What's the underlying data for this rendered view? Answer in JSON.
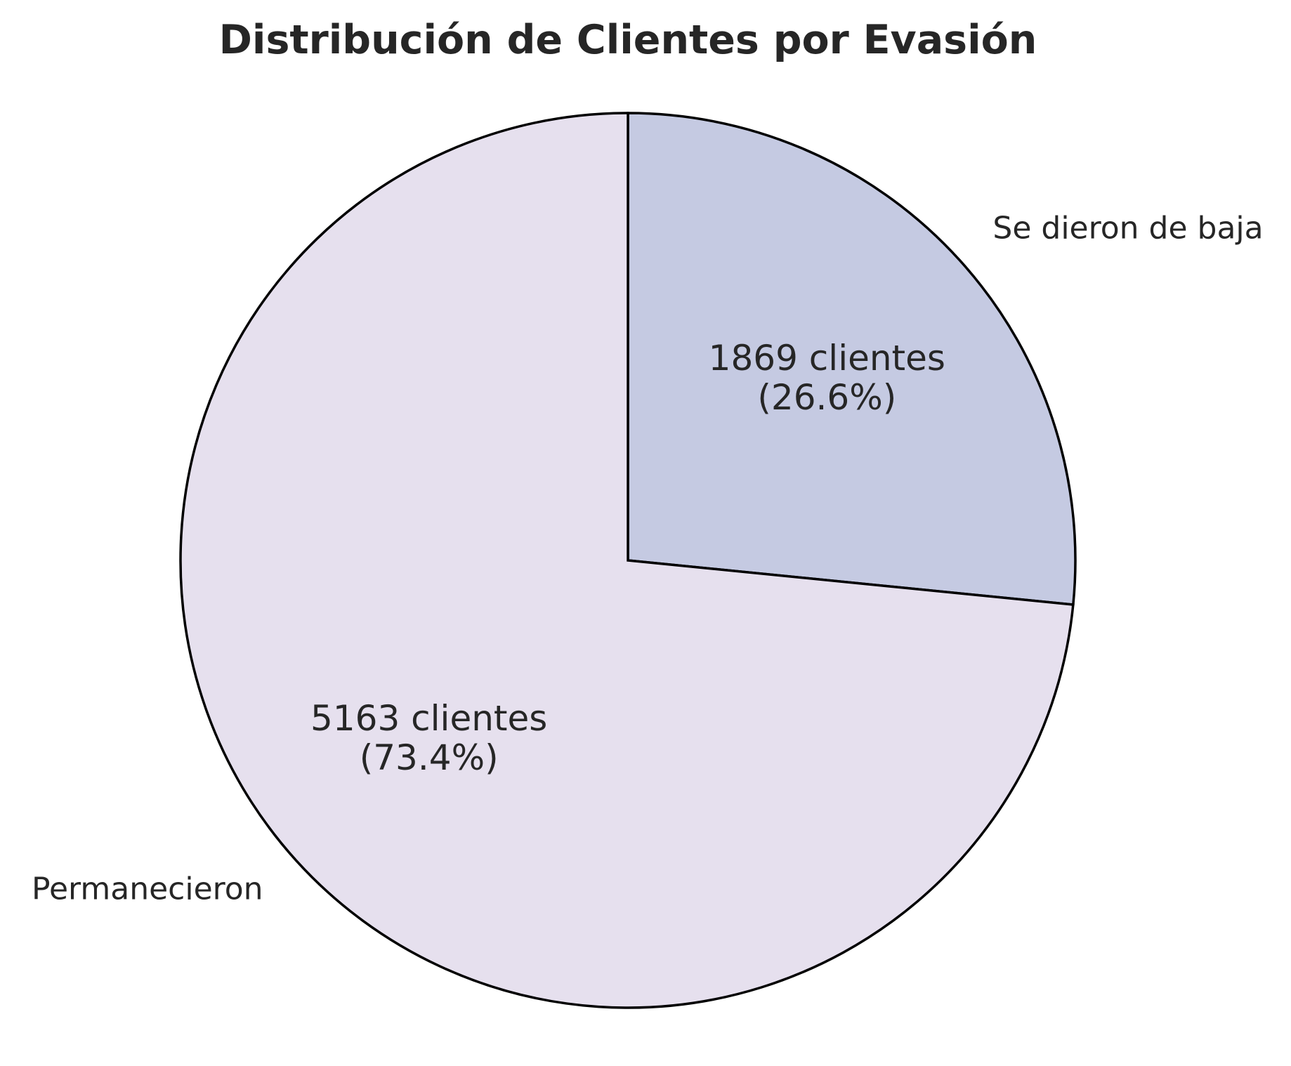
{
  "chart_data": {
    "type": "pie",
    "title": "Distribución de Clientes por Evasión",
    "start_angle_deg": 90,
    "direction": "clockwise",
    "slices": [
      {
        "label": "Se dieron de baja",
        "value": 1869,
        "value_label": "1869 clientes",
        "percent_label": "(26.6%)",
        "color": "#c5cae2"
      },
      {
        "label": "Permanecieron",
        "value": 5163,
        "value_label": "5163 clientes",
        "percent_label": "(73.4%)",
        "color": "#e6e0ee"
      }
    ],
    "edge_color": "#000000",
    "text_color": "#262626"
  }
}
